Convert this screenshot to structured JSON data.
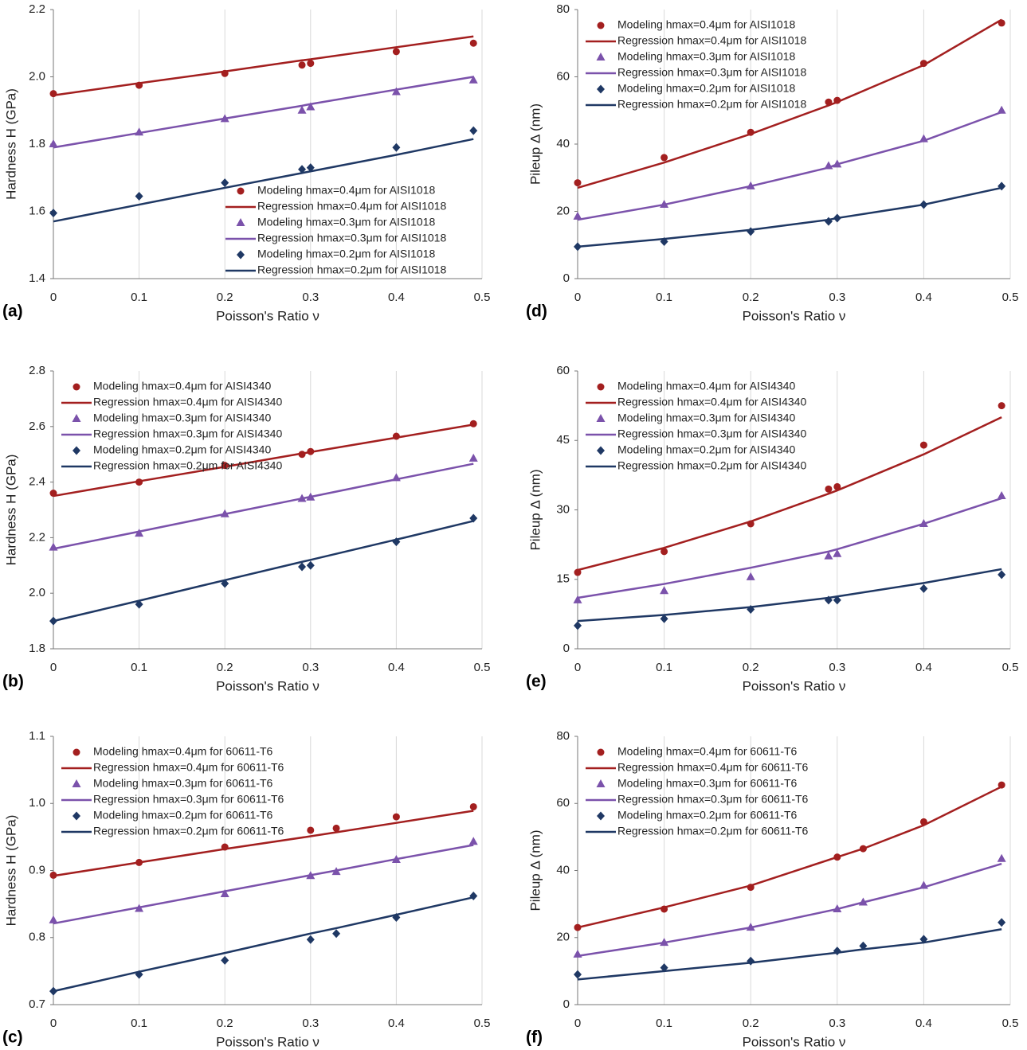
{
  "chart_data": [
    {
      "type": "scatter",
      "label": "(a)",
      "xlabel": "Poisson's Ratio ν",
      "ylabel": "Hardness H (GPa)",
      "legend": "lower right",
      "grid": "x",
      "x": [
        0,
        0.1,
        0.2,
        0.29,
        0.3,
        0.4,
        0.49
      ],
      "xlim": [
        0,
        0.5
      ],
      "xticks": [
        0,
        0.1,
        0.2,
        0.3,
        0.4,
        0.5
      ],
      "ylim": [
        1.4,
        2.2
      ],
      "yticks": [
        1.4,
        1.6,
        1.8,
        {
          "value": 2,
          "label": "2.0"
        },
        2.2
      ],
      "series": [
        {
          "name": "Modeling hmax=0.4μm for AISI1018",
          "color": "#a31f1f",
          "marker": "circle",
          "values": [
            1.95,
            1.975,
            2.01,
            2.035,
            2.04,
            2.075,
            2.1
          ]
        },
        {
          "name": "Regression hmax=0.4μm for AISI1018",
          "color": "#a31f1f",
          "marker": "line",
          "values": [
            1.945,
            1.981,
            2.016,
            2.049,
            2.052,
            2.088,
            2.12
          ]
        },
        {
          "name": "Modeling hmax=0.3μm for AISI1018",
          "color": "#7b52ab",
          "marker": "triangle",
          "values": [
            1.8,
            1.835,
            1.875,
            1.9,
            1.91,
            1.955,
            1.99
          ]
        },
        {
          "name": "Regression hmax=0.3μm for AISI1018",
          "color": "#7b52ab",
          "marker": "line",
          "values": [
            1.79,
            1.833,
            1.876,
            1.914,
            1.919,
            1.962,
            2.0
          ]
        },
        {
          "name": "Modeling hmax=0.2μm for AISI1018",
          "color": "#1f3864",
          "marker": "diamond",
          "values": [
            1.595,
            1.645,
            1.685,
            1.725,
            1.73,
            1.79,
            1.84
          ]
        },
        {
          "name": "Regression hmax=0.2μm for AISI1018",
          "color": "#1f3864",
          "marker": "line",
          "values": [
            1.57,
            1.62,
            1.67,
            1.714,
            1.719,
            1.768,
            1.815
          ]
        }
      ]
    },
    {
      "type": "scatter",
      "label": "(b)",
      "xlabel": "Poisson's Ratio ν",
      "ylabel": "Hardness H (GPa)",
      "legend": "upper left",
      "grid": "x",
      "x": [
        0,
        0.1,
        0.2,
        0.29,
        0.3,
        0.4,
        0.49
      ],
      "xlim": [
        0,
        0.5
      ],
      "xticks": [
        0,
        0.1,
        0.2,
        0.3,
        0.4,
        0.5
      ],
      "ylim": [
        1.8,
        2.8
      ],
      "yticks": [
        1.8,
        {
          "value": 2,
          "label": "2.0"
        },
        2.2,
        2.4,
        2.6,
        2.8
      ],
      "series": [
        {
          "name": "Modeling hmax=0.4μm for AISI4340",
          "color": "#a31f1f",
          "marker": "circle",
          "values": [
            2.36,
            2.4,
            2.46,
            2.5,
            2.51,
            2.565,
            2.61
          ]
        },
        {
          "name": "Regression hmax=0.4μm for AISI4340",
          "color": "#a31f1f",
          "marker": "line",
          "values": [
            2.35,
            2.403,
            2.455,
            2.503,
            2.508,
            2.56,
            2.607
          ]
        },
        {
          "name": "Modeling hmax=0.3μm for AISI4340",
          "color": "#7b52ab",
          "marker": "triangle",
          "values": [
            2.165,
            2.215,
            2.285,
            2.34,
            2.345,
            2.415,
            2.485
          ]
        },
        {
          "name": "Regression hmax=0.3μm for AISI4340",
          "color": "#7b52ab",
          "marker": "line",
          "values": [
            2.16,
            2.222,
            2.285,
            2.341,
            2.347,
            2.41,
            2.466
          ]
        },
        {
          "name": "Modeling hmax=0.2μm for AISI4340",
          "color": "#1f3864",
          "marker": "diamond",
          "values": [
            1.9,
            1.96,
            2.035,
            2.095,
            2.1,
            2.185,
            2.27
          ]
        },
        {
          "name": "Regression hmax=0.2μm for AISI4340",
          "color": "#1f3864",
          "marker": "line",
          "values": [
            1.9,
            1.973,
            2.047,
            2.113,
            2.12,
            2.193,
            2.26
          ]
        }
      ]
    },
    {
      "type": "scatter",
      "label": "(c)",
      "xlabel": "Poisson's Ratio ν",
      "ylabel": "Hardness H (GPa)",
      "legend": "upper left",
      "grid": "x",
      "x": [
        0,
        0.1,
        0.2,
        0.3,
        0.33,
        0.4,
        0.49
      ],
      "xlim": [
        0,
        0.5
      ],
      "xticks": [
        0,
        0.1,
        0.2,
        0.3,
        0.4,
        0.5
      ],
      "ylim": [
        0.7,
        1.1
      ],
      "yticks": [
        0.7,
        0.8,
        0.9,
        {
          "value": 1,
          "label": "1.0"
        },
        1.1
      ],
      "series": [
        {
          "name": "Modeling hmax=0.4μm for 60611-T6",
          "color": "#a31f1f",
          "marker": "circle",
          "values": [
            0.893,
            0.912,
            0.935,
            0.96,
            0.963,
            0.98,
            0.995
          ]
        },
        {
          "name": "Regression hmax=0.4μm for 60611-T6",
          "color": "#a31f1f",
          "marker": "line",
          "values": [
            0.892,
            0.912,
            0.932,
            0.951,
            0.957,
            0.971,
            0.989
          ]
        },
        {
          "name": "Modeling hmax=0.3μm for 60611-T6",
          "color": "#7b52ab",
          "marker": "triangle",
          "values": [
            0.826,
            0.843,
            0.865,
            0.892,
            0.898,
            0.916,
            0.943
          ]
        },
        {
          "name": "Regression hmax=0.3μm for 60611-T6",
          "color": "#7b52ab",
          "marker": "line",
          "values": [
            0.821,
            0.845,
            0.869,
            0.893,
            0.9,
            0.917,
            0.938
          ]
        },
        {
          "name": "Modeling hmax=0.2μm for 60611-T6",
          "color": "#1f3864",
          "marker": "diamond",
          "values": [
            0.72,
            0.745,
            0.766,
            0.797,
            0.806,
            0.83,
            0.862
          ]
        },
        {
          "name": "Regression hmax=0.2μm for 60611-T6",
          "color": "#1f3864",
          "marker": "line",
          "values": [
            0.72,
            0.749,
            0.777,
            0.806,
            0.814,
            0.834,
            0.86
          ]
        }
      ]
    },
    {
      "type": "scatter",
      "label": "(d)",
      "xlabel": "Poisson's Ratio ν",
      "ylabel": "Pileup Δ (nm)",
      "legend": "upper left",
      "grid": "x",
      "x": [
        0,
        0.1,
        0.2,
        0.29,
        0.3,
        0.4,
        0.49
      ],
      "xlim": [
        0,
        0.5
      ],
      "xticks": [
        0,
        0.1,
        0.2,
        0.3,
        0.4,
        0.5
      ],
      "ylim": [
        0,
        80
      ],
      "yticks": [
        0,
        20,
        40,
        60,
        80
      ],
      "series": [
        {
          "name": "Modeling hmax=0.4μm for AISI1018",
          "color": "#a31f1f",
          "marker": "circle",
          "values": [
            28.5,
            36,
            43.5,
            52.5,
            53,
            64,
            76
          ]
        },
        {
          "name": "Regression hmax=0.4μm for AISI1018",
          "color": "#a31f1f",
          "marker": "line",
          "values": [
            27,
            34.5,
            43,
            51.5,
            52.5,
            63.5,
            77
          ]
        },
        {
          "name": "Modeling hmax=0.3μm for AISI1018",
          "color": "#7b52ab",
          "marker": "triangle",
          "values": [
            18.5,
            22,
            27.5,
            33.5,
            34,
            41.5,
            50
          ]
        },
        {
          "name": "Regression hmax=0.3μm for AISI1018",
          "color": "#7b52ab",
          "marker": "line",
          "values": [
            17.5,
            22,
            27.5,
            33,
            34,
            41,
            49.5
          ]
        },
        {
          "name": "Modeling hmax=0.2μm for AISI1018",
          "color": "#1f3864",
          "marker": "diamond",
          "values": [
            9.5,
            11,
            14,
            17,
            18,
            22,
            27.5
          ]
        },
        {
          "name": "Regression hmax=0.2μm for AISI1018",
          "color": "#1f3864",
          "marker": "line",
          "values": [
            9.5,
            11.8,
            14.5,
            17.5,
            18,
            22,
            27
          ]
        }
      ]
    },
    {
      "type": "scatter",
      "label": "(e)",
      "xlabel": "Poisson's Ratio ν",
      "ylabel": "Pileup Δ (nm)",
      "legend": "upper left",
      "grid": "x",
      "x": [
        0,
        0.1,
        0.2,
        0.29,
        0.3,
        0.4,
        0.49
      ],
      "xlim": [
        0,
        0.5
      ],
      "xticks": [
        0,
        0.1,
        0.2,
        0.3,
        0.4,
        0.5
      ],
      "ylim": [
        0,
        60
      ],
      "yticks": [
        0,
        15,
        30,
        45,
        60
      ],
      "series": [
        {
          "name": "Modeling hmax=0.4μm for AISI4340",
          "color": "#a31f1f",
          "marker": "circle",
          "values": [
            16.5,
            21,
            27,
            34.5,
            35,
            44,
            52.5
          ]
        },
        {
          "name": "Regression hmax=0.4μm for AISI4340",
          "color": "#a31f1f",
          "marker": "line",
          "values": [
            17,
            21.8,
            27.5,
            33.5,
            34.2,
            42,
            50
          ]
        },
        {
          "name": "Modeling hmax=0.3μm for AISI4340",
          "color": "#7b52ab",
          "marker": "triangle",
          "values": [
            10.5,
            12.5,
            15.5,
            20,
            20.5,
            27,
            33
          ]
        },
        {
          "name": "Regression hmax=0.3μm for AISI4340",
          "color": "#7b52ab",
          "marker": "line",
          "values": [
            11,
            14,
            17.5,
            21,
            21.5,
            27,
            32.5
          ]
        },
        {
          "name": "Modeling hmax=0.2μm for AISI4340",
          "color": "#1f3864",
          "marker": "diamond",
          "values": [
            5,
            6.5,
            8.5,
            10.5,
            10.5,
            13,
            16
          ]
        },
        {
          "name": "Regression hmax=0.2μm for AISI4340",
          "color": "#1f3864",
          "marker": "line",
          "values": [
            6,
            7.3,
            9,
            11,
            11.3,
            14.2,
            17.2
          ]
        }
      ]
    },
    {
      "type": "scatter",
      "label": "(f)",
      "xlabel": "Poisson's Ratio ν",
      "ylabel": "Pileup Δ (nm)",
      "legend": "upper left",
      "grid": "x",
      "x": [
        0,
        0.1,
        0.2,
        0.3,
        0.33,
        0.4,
        0.49
      ],
      "xlim": [
        0,
        0.5
      ],
      "xticks": [
        0,
        0.1,
        0.2,
        0.3,
        0.4,
        0.5
      ],
      "ylim": [
        0,
        80
      ],
      "yticks": [
        0,
        20,
        40,
        60,
        80
      ],
      "series": [
        {
          "name": "Modeling hmax=0.4μm for 60611-T6",
          "color": "#a31f1f",
          "marker": "circle",
          "values": [
            23,
            28.5,
            35,
            44,
            46.5,
            54.5,
            65.5
          ]
        },
        {
          "name": "Regression hmax=0.4μm for 60611-T6",
          "color": "#a31f1f",
          "marker": "line",
          "values": [
            23,
            29,
            35.5,
            44,
            46.5,
            53.5,
            65
          ]
        },
        {
          "name": "Modeling hmax=0.3μm for 60611-T6",
          "color": "#7b52ab",
          "marker": "triangle",
          "values": [
            15,
            18.5,
            23,
            28.5,
            30.5,
            35.5,
            43.5
          ]
        },
        {
          "name": "Regression hmax=0.3μm for 60611-T6",
          "color": "#7b52ab",
          "marker": "line",
          "values": [
            14.5,
            18.5,
            23,
            28.5,
            30.5,
            35,
            42
          ]
        },
        {
          "name": "Modeling hmax=0.2μm for 60611-T6",
          "color": "#1f3864",
          "marker": "diamond",
          "values": [
            9,
            11,
            13,
            16,
            17.5,
            19.5,
            24.5
          ]
        },
        {
          "name": "Regression hmax=0.2μm for 60611-T6",
          "color": "#1f3864",
          "marker": "line",
          "values": [
            7.5,
            10,
            12.5,
            15.5,
            16.5,
            18.5,
            22.5
          ]
        }
      ]
    }
  ]
}
